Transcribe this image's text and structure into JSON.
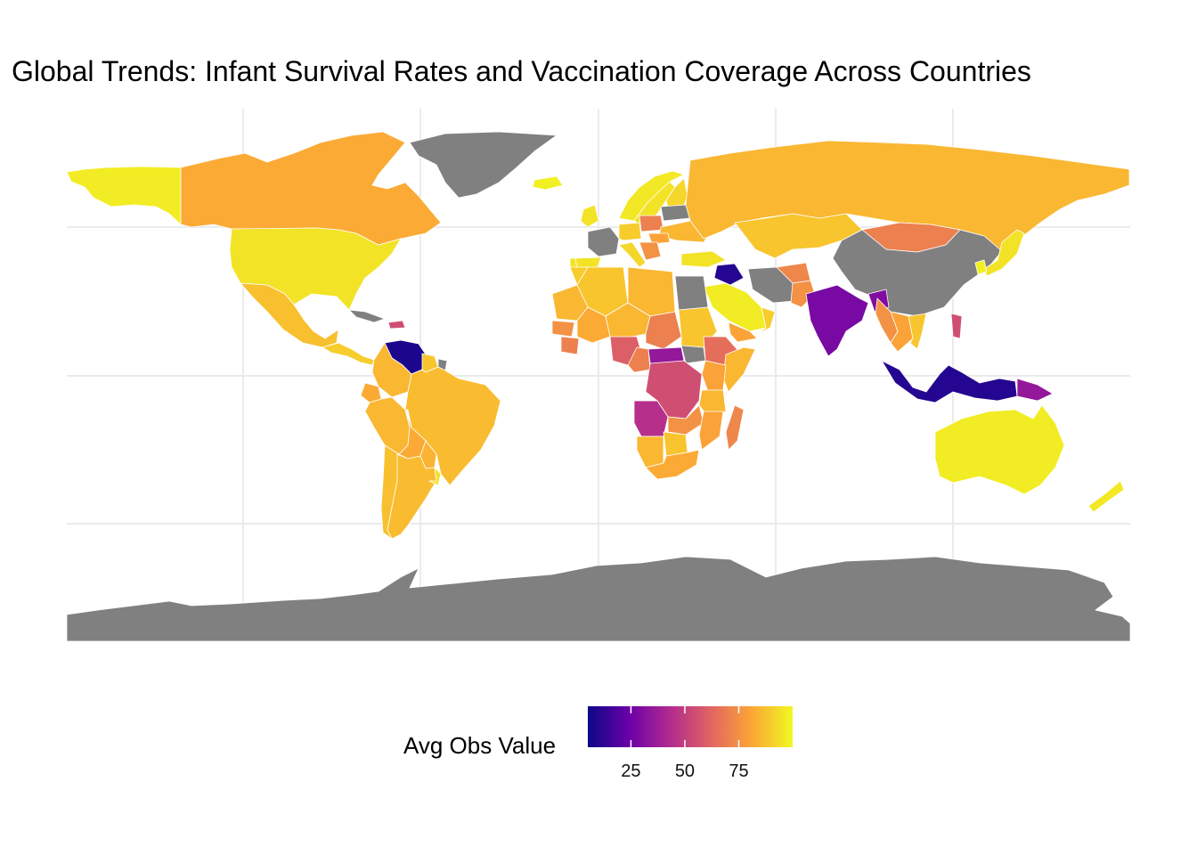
{
  "title": "Global Trends: Infant Survival Rates and Vaccination Coverage Across Countries",
  "chart_data": {
    "type": "choropleth",
    "title": "Global Trends: Infant Survival Rates and Vaccination Coverage Across Countries",
    "legend": {
      "title": "Avg Obs Value",
      "placement": "bottom",
      "breaks": [
        25,
        50,
        75
      ],
      "range": [
        5,
        100
      ],
      "palette": [
        "#0d0887",
        "#6a00a8",
        "#b12a90",
        "#e16462",
        "#fca636",
        "#f0f921"
      ]
    },
    "grid": true,
    "missing_color": "#808080",
    "regions": [
      {
        "name": "Alaska",
        "value": 97
      },
      {
        "name": "Canada",
        "value": 82
      },
      {
        "name": "United States",
        "value": 95
      },
      {
        "name": "Mexico",
        "value": 87
      },
      {
        "name": "Central America",
        "value": 90
      },
      {
        "name": "Cuba",
        "value": null
      },
      {
        "name": "Haiti",
        "value": 55
      },
      {
        "name": "Venezuela",
        "value": 8
      },
      {
        "name": "Guyana",
        "value": 88
      },
      {
        "name": "French Guiana",
        "value": null
      },
      {
        "name": "Colombia",
        "value": 85
      },
      {
        "name": "Ecuador",
        "value": 82
      },
      {
        "name": "Peru",
        "value": 85
      },
      {
        "name": "Brazil",
        "value": 86
      },
      {
        "name": "Bolivia",
        "value": 82
      },
      {
        "name": "Paraguay",
        "value": 84
      },
      {
        "name": "Chile",
        "value": 87
      },
      {
        "name": "Argentina",
        "value": 86
      },
      {
        "name": "Uruguay",
        "value": 95
      },
      {
        "name": "Greenland",
        "value": null
      },
      {
        "name": "Iceland",
        "value": 98
      },
      {
        "name": "Norway",
        "value": 96
      },
      {
        "name": "Sweden",
        "value": 95
      },
      {
        "name": "Finland",
        "value": 92
      },
      {
        "name": "United Kingdom",
        "value": 95
      },
      {
        "name": "France",
        "value": null
      },
      {
        "name": "Spain",
        "value": 95
      },
      {
        "name": "Portugal",
        "value": 95
      },
      {
        "name": "Germany",
        "value": 90
      },
      {
        "name": "Poland",
        "value": 70
      },
      {
        "name": "Italy",
        "value": 92
      },
      {
        "name": "Belarus",
        "value": null
      },
      {
        "name": "Ukraine",
        "value": 85
      },
      {
        "name": "Romania",
        "value": 80
      },
      {
        "name": "Balkans",
        "value": 75
      },
      {
        "name": "Turkey",
        "value": 95
      },
      {
        "name": "Russia",
        "value": 85
      },
      {
        "name": "Kazakhstan",
        "value": 88
      },
      {
        "name": "Mongolia",
        "value": 70
      },
      {
        "name": "China",
        "value": null
      },
      {
        "name": "Japan",
        "value": 95
      },
      {
        "name": "Korea",
        "value": 98
      },
      {
        "name": "Iran",
        "value": null
      },
      {
        "name": "Iraq",
        "value": 10
      },
      {
        "name": "Saudi Arabia",
        "value": 97
      },
      {
        "name": "Yemen",
        "value": 80
      },
      {
        "name": "Oman",
        "value": 90
      },
      {
        "name": "Afghanistan",
        "value": 72
      },
      {
        "name": "Pakistan",
        "value": 75
      },
      {
        "name": "India",
        "value": 28
      },
      {
        "name": "Bangladesh",
        "value": 30
      },
      {
        "name": "Myanmar",
        "value": 75
      },
      {
        "name": "Thailand",
        "value": 80
      },
      {
        "name": "Vietnam",
        "value": 88
      },
      {
        "name": "Philippines",
        "value": 55
      },
      {
        "name": "Indonesia",
        "value": 10
      },
      {
        "name": "Papua New Guinea",
        "value": 35
      },
      {
        "name": "Australia",
        "value": 97
      },
      {
        "name": "New Zealand",
        "value": 96
      },
      {
        "name": "Morocco",
        "value": 90
      },
      {
        "name": "Algeria",
        "value": 88
      },
      {
        "name": "Libya",
        "value": 85
      },
      {
        "name": "Egypt",
        "value": null
      },
      {
        "name": "Mauritania",
        "value": 85
      },
      {
        "name": "Mali",
        "value": 82
      },
      {
        "name": "Niger",
        "value": 85
      },
      {
        "name": "Chad",
        "value": 70
      },
      {
        "name": "Sudan",
        "value": 88
      },
      {
        "name": "Senegal",
        "value": 75
      },
      {
        "name": "Guinea",
        "value": 70
      },
      {
        "name": "Nigeria",
        "value": 60
      },
      {
        "name": "Cameroon",
        "value": 70
      },
      {
        "name": "Central African Republic",
        "value": 35
      },
      {
        "name": "South Sudan",
        "value": null
      },
      {
        "name": "Ethiopia",
        "value": 65
      },
      {
        "name": "Somalia",
        "value": 85
      },
      {
        "name": "Kenya",
        "value": 80
      },
      {
        "name": "DR Congo",
        "value": 55
      },
      {
        "name": "Tanzania",
        "value": 85
      },
      {
        "name": "Angola",
        "value": 45
      },
      {
        "name": "Zambia",
        "value": 75
      },
      {
        "name": "Mozambique",
        "value": 80
      },
      {
        "name": "Namibia",
        "value": 85
      },
      {
        "name": "Botswana",
        "value": 88
      },
      {
        "name": "South Africa",
        "value": 82
      },
      {
        "name": "Madagascar",
        "value": 72
      },
      {
        "name": "Antarctica",
        "value": null
      }
    ]
  }
}
